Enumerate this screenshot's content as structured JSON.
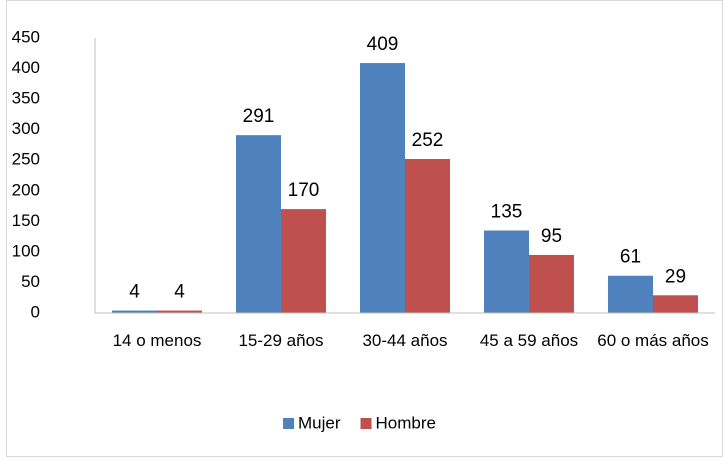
{
  "chart_data": {
    "type": "bar",
    "categories": [
      "14 o menos",
      "15-29 años",
      "30-44 años",
      "45 a 59 años",
      "60 o más años"
    ],
    "series": [
      {
        "name": "Mujer",
        "color": "#4f81bd",
        "values": [
          4,
          291,
          409,
          135,
          61
        ]
      },
      {
        "name": "Hombre",
        "color": "#c0504d",
        "values": [
          4,
          170,
          252,
          95,
          29
        ]
      }
    ],
    "ylim": [
      0,
      450
    ],
    "yticks": [
      0,
      50,
      100,
      150,
      200,
      250,
      300,
      350,
      400,
      450
    ],
    "grid": false,
    "legend": "bottom",
    "data_labels": true
  }
}
